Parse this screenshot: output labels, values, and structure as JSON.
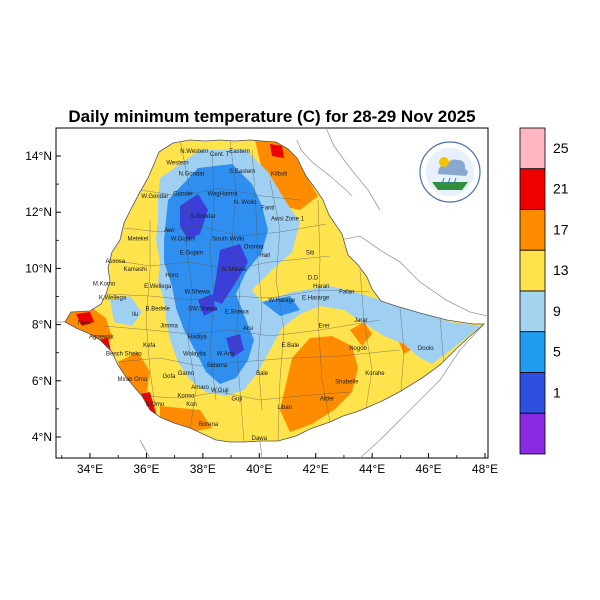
{
  "map": {
    "title": "Daily minimum temperature (C) for 28-29 Nov 2025",
    "x_ticks": [
      "34°E",
      "36°E",
      "38°E",
      "40°E",
      "42°E",
      "44°E",
      "46°E",
      "48°E"
    ],
    "y_ticks": [
      "14°N",
      "12°N",
      "10°N",
      "8°N",
      "6°N",
      "4°N"
    ],
    "x_tick_values": [
      34,
      36,
      38,
      40,
      42,
      44,
      46,
      48
    ],
    "y_tick_values": [
      14,
      12,
      10,
      8,
      6,
      4
    ],
    "lon_range": [
      33,
      48.2
    ],
    "lat_range": [
      3.2,
      15
    ]
  },
  "colorbar": {
    "labels": [
      "25",
      "21",
      "17",
      "13",
      "9",
      "5",
      "1"
    ],
    "colors": [
      "#ffb6c1",
      "#ee0000",
      "#ff8c00",
      "#ffe34d",
      "#a4d3f0",
      "#1e9cf0",
      "#2f4fe0",
      "#8a2be2"
    ]
  },
  "palette": {
    "cold_deep": "#3b3fd8",
    "cold": "#2f8ff0",
    "cool": "#9fd0f2",
    "mild": "#ffe34d",
    "warm": "#ff8c00",
    "hot": "#ee0000",
    "boundary": "#555555"
  },
  "regions": [
    {
      "name": "Western",
      "lon": 37.1,
      "lat": 13.7
    },
    {
      "name": "N.Western",
      "lon": 37.7,
      "lat": 14.1
    },
    {
      "name": "Cent. T",
      "lon": 38.6,
      "lat": 14.0
    },
    {
      "name": "Eastern",
      "lon": 39.3,
      "lat": 14.1
    },
    {
      "name": "S.Eastern",
      "lon": 39.4,
      "lat": 13.4
    },
    {
      "name": "N.Gondar",
      "lon": 37.6,
      "lat": 13.3
    },
    {
      "name": "Kilbati",
      "lon": 40.7,
      "lat": 13.3
    },
    {
      "name": "Gonder",
      "lon": 37.3,
      "lat": 12.6
    },
    {
      "name": "W.Gondar",
      "lon": 36.3,
      "lat": 12.5
    },
    {
      "name": "WagHamra",
      "lon": 38.7,
      "lat": 12.6
    },
    {
      "name": "N. Wollo",
      "lon": 39.5,
      "lat": 12.3
    },
    {
      "name": "Fanti",
      "lon": 40.3,
      "lat": 12.1
    },
    {
      "name": "S.Gondar",
      "lon": 38.0,
      "lat": 11.8
    },
    {
      "name": "Awsi Zone 1",
      "lon": 41.0,
      "lat": 11.7
    },
    {
      "name": "Metekel",
      "lon": 35.7,
      "lat": 11.0
    },
    {
      "name": "Awi",
      "lon": 36.8,
      "lat": 11.3
    },
    {
      "name": "W.Gojam",
      "lon": 37.3,
      "lat": 11.0
    },
    {
      "name": "South Wollo",
      "lon": 38.9,
      "lat": 11.0
    },
    {
      "name": "Oromia",
      "lon": 39.8,
      "lat": 10.7
    },
    {
      "name": "E.Gojam",
      "lon": 37.6,
      "lat": 10.5
    },
    {
      "name": "Hari",
      "lon": 40.2,
      "lat": 10.4
    },
    {
      "name": "Siti",
      "lon": 41.8,
      "lat": 10.5
    },
    {
      "name": "Assosa",
      "lon": 34.9,
      "lat": 10.2
    },
    {
      "name": "Kamashi",
      "lon": 35.6,
      "lat": 9.9
    },
    {
      "name": "Horo",
      "lon": 36.9,
      "lat": 9.7
    },
    {
      "name": "N.Shewa",
      "lon": 39.1,
      "lat": 9.9
    },
    {
      "name": "D.D",
      "lon": 41.9,
      "lat": 9.6
    },
    {
      "name": "Harari",
      "lon": 42.2,
      "lat": 9.3
    },
    {
      "name": "M.Komo",
      "lon": 34.5,
      "lat": 9.4
    },
    {
      "name": "E.Wellega",
      "lon": 36.4,
      "lat": 9.3
    },
    {
      "name": "W.Shewa",
      "lon": 37.8,
      "lat": 9.1
    },
    {
      "name": "W.Harage",
      "lon": 40.8,
      "lat": 8.8
    },
    {
      "name": "E.Hararge",
      "lon": 42.0,
      "lat": 8.9
    },
    {
      "name": "Fafan",
      "lon": 43.1,
      "lat": 9.1
    },
    {
      "name": "K.Wellega",
      "lon": 34.8,
      "lat": 8.9
    },
    {
      "name": "Ilu",
      "lon": 35.6,
      "lat": 8.3
    },
    {
      "name": "B.Bedele",
      "lon": 36.4,
      "lat": 8.5
    },
    {
      "name": "SW.Shewa",
      "lon": 38.0,
      "lat": 8.5
    },
    {
      "name": "E.Shewa",
      "lon": 39.2,
      "lat": 8.4
    },
    {
      "name": "Nuer",
      "lon": 33.8,
      "lat": 8.0
    },
    {
      "name": "Jimma",
      "lon": 36.8,
      "lat": 7.9
    },
    {
      "name": "Arsi",
      "lon": 39.6,
      "lat": 7.8
    },
    {
      "name": "Erer",
      "lon": 42.3,
      "lat": 7.9
    },
    {
      "name": "Jarar",
      "lon": 43.6,
      "lat": 8.1
    },
    {
      "name": "Agnewak",
      "lon": 34.4,
      "lat": 7.5
    },
    {
      "name": "Kefa",
      "lon": 36.1,
      "lat": 7.2
    },
    {
      "name": "Hadiya",
      "lon": 37.8,
      "lat": 7.5
    },
    {
      "name": "E.Bale",
      "lon": 41.1,
      "lat": 7.2
    },
    {
      "name": "Doolo",
      "lon": 45.9,
      "lat": 7.1
    },
    {
      "name": "Bench Sheko",
      "lon": 35.2,
      "lat": 6.9
    },
    {
      "name": "Wolayita",
      "lon": 37.7,
      "lat": 6.9
    },
    {
      "name": "W.Arsi",
      "lon": 38.8,
      "lat": 6.9
    },
    {
      "name": "Nogob",
      "lon": 43.5,
      "lat": 7.1
    },
    {
      "name": "Sidama",
      "lon": 38.5,
      "lat": 6.5
    },
    {
      "name": "Bale",
      "lon": 40.1,
      "lat": 6.2
    },
    {
      "name": "Gofa",
      "lon": 36.8,
      "lat": 6.1
    },
    {
      "name": "Gamo",
      "lon": 37.4,
      "lat": 6.2
    },
    {
      "name": "Korahe",
      "lon": 44.1,
      "lat": 6.2
    },
    {
      "name": "Mirab Omo",
      "lon": 35.5,
      "lat": 6.0
    },
    {
      "name": "Amaro",
      "lon": 37.9,
      "lat": 5.7
    },
    {
      "name": "W.Guji",
      "lon": 38.6,
      "lat": 5.6
    },
    {
      "name": "Guji",
      "lon": 39.2,
      "lat": 5.3
    },
    {
      "name": "Shabelle",
      "lon": 43.1,
      "lat": 5.9
    },
    {
      "name": "S.Omo",
      "lon": 36.3,
      "lat": 5.1
    },
    {
      "name": "Konso",
      "lon": 37.4,
      "lat": 5.4
    },
    {
      "name": "Kon",
      "lon": 37.6,
      "lat": 5.1
    },
    {
      "name": "Liban",
      "lon": 40.9,
      "lat": 5.0
    },
    {
      "name": "Afder",
      "lon": 42.4,
      "lat": 5.3
    },
    {
      "name": "Borena",
      "lon": 38.2,
      "lat": 4.4
    },
    {
      "name": "Dawa",
      "lon": 40.0,
      "lat": 3.9
    }
  ]
}
